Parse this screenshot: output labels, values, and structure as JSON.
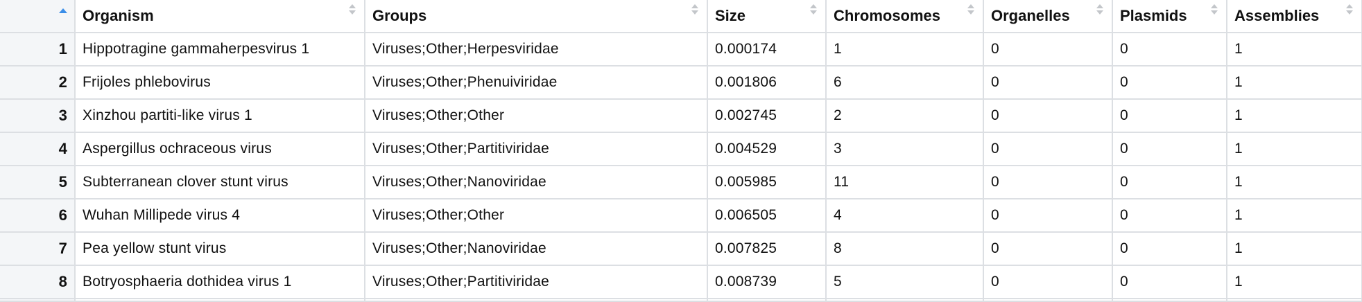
{
  "colors": {
    "sort_active": "#3b8ee8",
    "sort_inactive": "#c3c6ca",
    "grid_line": "#dcdfe3",
    "row_number_bg": "#f4f6f8"
  },
  "table": {
    "sort": {
      "column": "row-number",
      "direction": "ascending"
    },
    "columns": [
      {
        "label": "Organism"
      },
      {
        "label": "Groups"
      },
      {
        "label": "Size"
      },
      {
        "label": "Chromosomes"
      },
      {
        "label": "Organelles"
      },
      {
        "label": "Plasmids"
      },
      {
        "label": "Assemblies"
      }
    ],
    "rows": [
      {
        "n": "1",
        "organism": "Hippotragine gammaherpesvirus 1",
        "groups": "Viruses;Other;Herpesviridae",
        "size": "0.000174",
        "chromosomes": "1",
        "organelles": "0",
        "plasmids": "0",
        "assemblies": "1"
      },
      {
        "n": "2",
        "organism": "Frijoles phlebovirus",
        "groups": "Viruses;Other;Phenuiviridae",
        "size": "0.001806",
        "chromosomes": "6",
        "organelles": "0",
        "plasmids": "0",
        "assemblies": "1"
      },
      {
        "n": "3",
        "organism": "Xinzhou partiti-like virus 1",
        "groups": "Viruses;Other;Other",
        "size": "0.002745",
        "chromosomes": "2",
        "organelles": "0",
        "plasmids": "0",
        "assemblies": "1"
      },
      {
        "n": "4",
        "organism": "Aspergillus ochraceous virus",
        "groups": "Viruses;Other;Partitiviridae",
        "size": "0.004529",
        "chromosomes": "3",
        "organelles": "0",
        "plasmids": "0",
        "assemblies": "1"
      },
      {
        "n": "5",
        "organism": "Subterranean clover stunt virus",
        "groups": "Viruses;Other;Nanoviridae",
        "size": "0.005985",
        "chromosomes": "11",
        "organelles": "0",
        "plasmids": "0",
        "assemblies": "1"
      },
      {
        "n": "6",
        "organism": "Wuhan Millipede virus 4",
        "groups": "Viruses;Other;Other",
        "size": "0.006505",
        "chromosomes": "4",
        "organelles": "0",
        "plasmids": "0",
        "assemblies": "1"
      },
      {
        "n": "7",
        "organism": "Pea yellow stunt virus",
        "groups": "Viruses;Other;Nanoviridae",
        "size": "0.007825",
        "chromosomes": "8",
        "organelles": "0",
        "plasmids": "0",
        "assemblies": "1"
      },
      {
        "n": "8",
        "organism": "Botryosphaeria dothidea virus 1",
        "groups": "Viruses;Other;Partitiviridae",
        "size": "0.008739",
        "chromosomes": "5",
        "organelles": "0",
        "plasmids": "0",
        "assemblies": "1"
      }
    ]
  }
}
